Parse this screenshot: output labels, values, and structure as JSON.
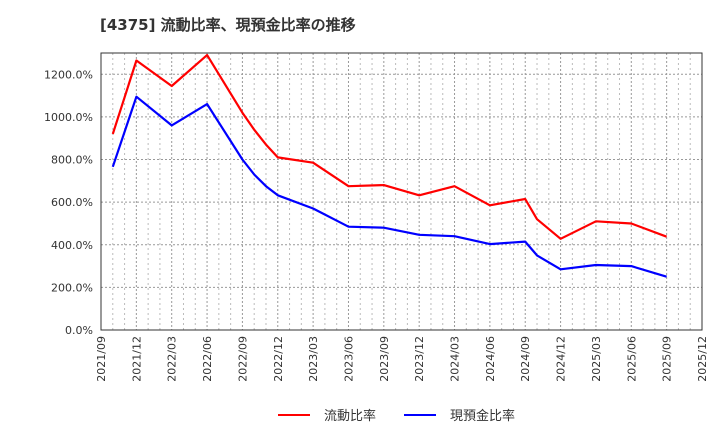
{
  "title": "[4375]  流動比率、現預金比率の推移",
  "legend": [
    {
      "label": "流動比率",
      "color": "#ff0000"
    },
    {
      "label": "現預金比率",
      "color": "#0000ff"
    }
  ],
  "chart_data": {
    "type": "line",
    "title": "[4375] 流動比率、現預金比率の推移",
    "xlabel": "",
    "ylabel": "",
    "ylim": [
      0,
      1300
    ],
    "y_ticks": [
      "0.0%",
      "200.0%",
      "400.0%",
      "600.0%",
      "800.0%",
      "1000.0%",
      "1200.0%"
    ],
    "y_tick_values": [
      0,
      200,
      400,
      600,
      800,
      1000,
      1200
    ],
    "x_ticks": [
      "2021/09",
      "2021/12",
      "2022/03",
      "2022/06",
      "2022/09",
      "2022/12",
      "2023/03",
      "2023/06",
      "2023/09",
      "2023/12",
      "2024/03",
      "2024/06",
      "2024/09",
      "2024/12",
      "2025/03",
      "2025/06",
      "2025/09",
      "2025/12"
    ],
    "grid": true,
    "legend_position": "bottom",
    "x": [
      "2021/10",
      "2021/12",
      "2022/03",
      "2022/06",
      "2022/09",
      "2022/10",
      "2022/11",
      "2022/12",
      "2023/03",
      "2023/06",
      "2023/09",
      "2023/12",
      "2024/03",
      "2024/06",
      "2024/09",
      "2024/10",
      "2024/12",
      "2025/03",
      "2025/06",
      "2025/09"
    ],
    "x_month_index": [
      1,
      3,
      6,
      9,
      12,
      13,
      14,
      15,
      18,
      21,
      24,
      27,
      30,
      33,
      36,
      37,
      39,
      42,
      45,
      48
    ],
    "series": [
      {
        "name": "流動比率",
        "color": "#ff0000",
        "values": [
          920,
          1265,
          1145,
          1290,
          1020,
          940,
          870,
          810,
          785,
          675,
          680,
          632,
          675,
          585,
          615,
          520,
          428,
          510,
          500,
          438
        ]
      },
      {
        "name": "現預金比率",
        "color": "#0000ff",
        "values": [
          766,
          1095,
          960,
          1060,
          800,
          730,
          675,
          632,
          570,
          485,
          480,
          447,
          440,
          403,
          415,
          350,
          285,
          305,
          300,
          250
        ]
      }
    ]
  }
}
